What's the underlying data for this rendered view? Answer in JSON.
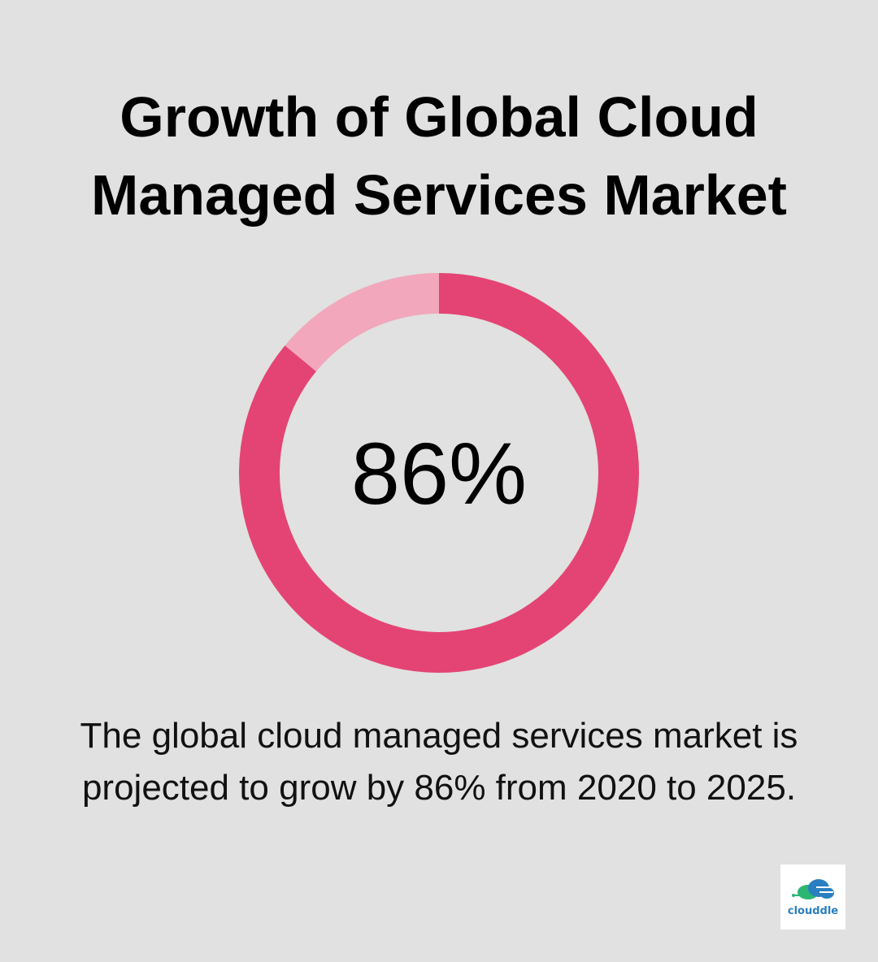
{
  "title": {
    "line1": "Growth of Global Cloud",
    "line2": "Managed Services Market"
  },
  "chart_data": {
    "type": "pie",
    "style": "donut",
    "center_label": "86%",
    "slices": [
      {
        "value": 86,
        "color": "#e44474"
      },
      {
        "value": 14,
        "color": "#f2a7bd"
      }
    ]
  },
  "caption": {
    "line1": "The global cloud managed services market is",
    "line2": "projected to grow by 86% from 2020 to 2025."
  },
  "logo": {
    "text": "clouddle",
    "icon": "cloud-icon",
    "colors": {
      "text": "#2a7fc0",
      "accent": "#2bb673"
    }
  }
}
